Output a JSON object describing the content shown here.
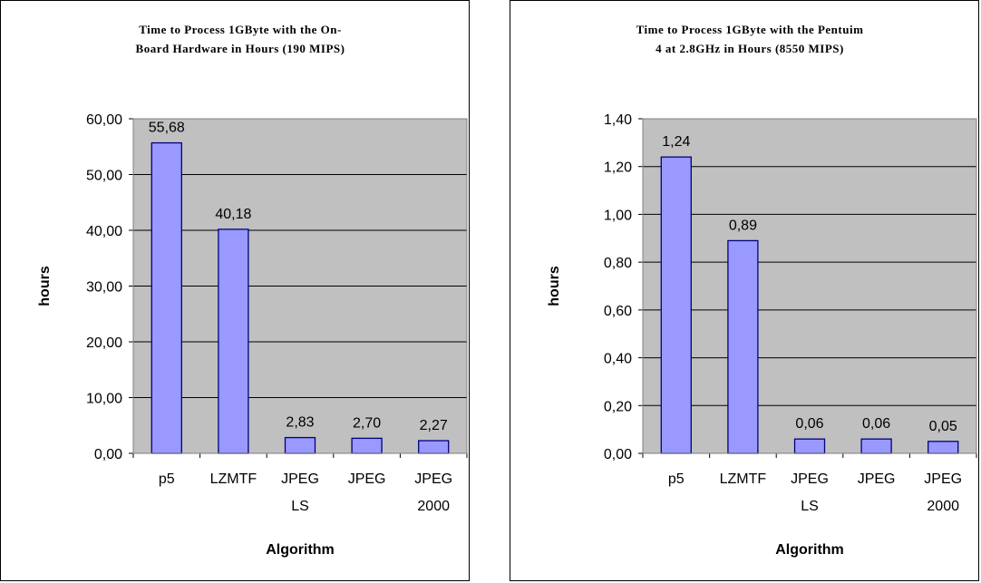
{
  "chart_data": [
    {
      "type": "bar",
      "title_lines": [
        "Time to Process 1GByte with the On-",
        "Board Hardware in Hours (190 MIPS)"
      ],
      "ylabel": "hours",
      "xlabel": "Algorithm",
      "categories": [
        [
          "p5"
        ],
        [
          "LZMTF"
        ],
        [
          "JPEG",
          "LS"
        ],
        [
          "JPEG"
        ],
        [
          "JPEG",
          "2000"
        ]
      ],
      "values": [
        55.68,
        40.18,
        2.83,
        2.7,
        2.27
      ],
      "value_labels": [
        "55,68",
        "40,18",
        "2,83",
        "2,70",
        "2,27"
      ],
      "y_ticks": [
        "0,00",
        "10,00",
        "20,00",
        "30,00",
        "40,00",
        "50,00",
        "60,00"
      ],
      "ylim": [
        0,
        60
      ],
      "grid": true,
      "legend": "none"
    },
    {
      "type": "bar",
      "title_lines": [
        "Time to Process 1GByte with the Pentuim",
        "4 at 2.8GHz in Hours (8550 MIPS)"
      ],
      "ylabel": "hours",
      "xlabel": "Algorithm",
      "categories": [
        [
          "p5"
        ],
        [
          "LZMTF"
        ],
        [
          "JPEG",
          "LS"
        ],
        [
          "JPEG"
        ],
        [
          "JPEG",
          "2000"
        ]
      ],
      "values": [
        1.24,
        0.89,
        0.06,
        0.06,
        0.05
      ],
      "value_labels": [
        "1,24",
        "0,89",
        "0,06",
        "0,06",
        "0,05"
      ],
      "y_ticks": [
        "0,00",
        "0,20",
        "0,40",
        "0,60",
        "0,80",
        "1,00",
        "1,20",
        "1,40"
      ],
      "ylim": [
        0,
        1.4
      ],
      "grid": true,
      "legend": "none"
    }
  ],
  "colors": {
    "plot_background": "#c0c0c0",
    "bar_fill": "#9999ff",
    "bar_stroke": "#000080",
    "gridline": "#000000"
  }
}
